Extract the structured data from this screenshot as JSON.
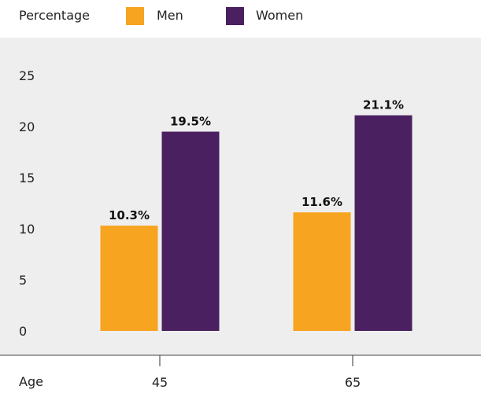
{
  "legend": {
    "ylabel": "Percentage",
    "series_1": "Men",
    "series_2": "Women"
  },
  "colors": {
    "men": "#f7a420",
    "women": "#4a2060",
    "panel": "#eeeeee"
  },
  "chart_data": {
    "type": "bar",
    "title": "",
    "xlabel": "Age",
    "ylabel": "Percentage",
    "categories": [
      "45",
      "65"
    ],
    "series": [
      {
        "name": "Men",
        "values": [
          10.3,
          11.6
        ],
        "labels": [
          "10.3%",
          "11.6%"
        ]
      },
      {
        "name": "Women",
        "values": [
          19.5,
          21.1
        ],
        "labels": [
          "19.5%",
          "21.1%"
        ]
      }
    ],
    "yticks": [
      "0",
      "5",
      "10",
      "15",
      "20",
      "25"
    ],
    "ylim": [
      0,
      25
    ],
    "grid": false,
    "legend_position": "top-left"
  }
}
